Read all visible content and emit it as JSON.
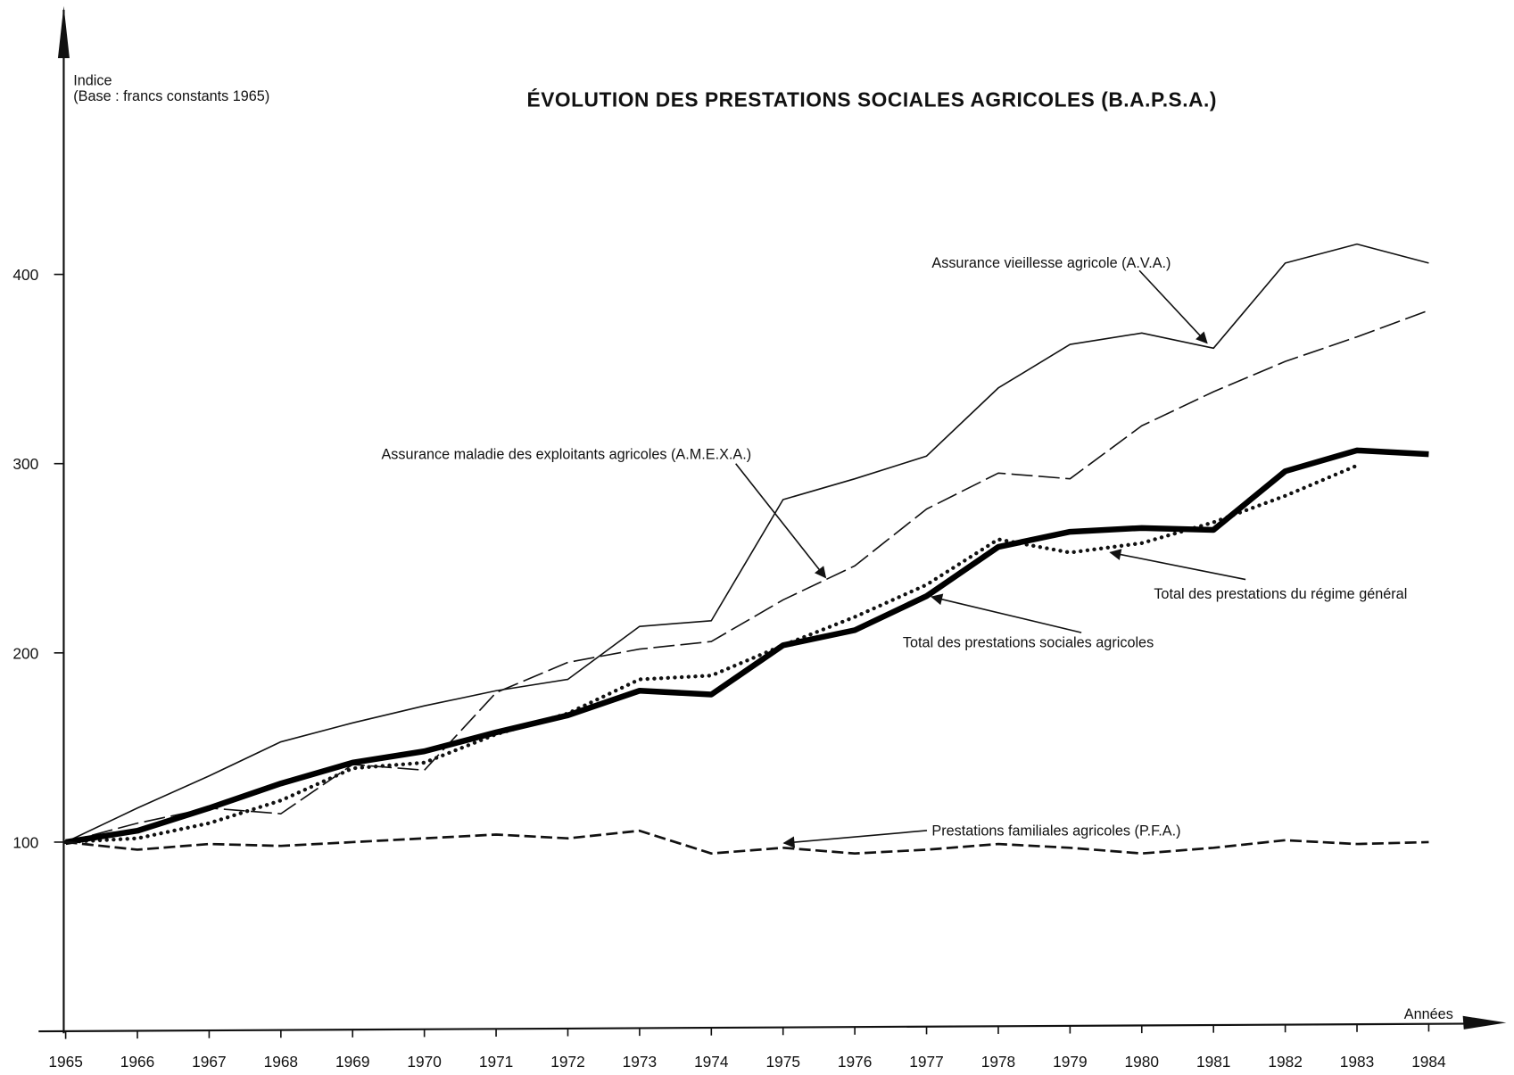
{
  "chart_data": {
    "type": "line",
    "title": "ÉVOLUTION DES PRESTATIONS SOCIALES AGRICOLES (B.A.P.S.A.)",
    "y_label": [
      "Indice",
      "(Base : francs constants 1965)"
    ],
    "x_label": "Années",
    "x": [
      1965,
      1966,
      1967,
      1968,
      1969,
      1970,
      1971,
      1972,
      1973,
      1974,
      1975,
      1976,
      1977,
      1978,
      1979,
      1980,
      1981,
      1982,
      1983,
      1984
    ],
    "xlim": [
      1965,
      1985
    ],
    "xticks": [
      1965,
      1966,
      1967,
      1968,
      1969,
      1970,
      1971,
      1972,
      1973,
      1974,
      1975,
      1976,
      1977,
      1978,
      1979,
      1980,
      1981,
      1982,
      1983,
      1984
    ],
    "ylim": [
      0,
      540
    ],
    "yticks": [
      100,
      200,
      300,
      400
    ],
    "series": [
      {
        "name": "Assurance vieillesse agricole (A.V.A.)",
        "color": "#111",
        "line_style": "thin",
        "values": [
          100,
          118,
          135,
          153,
          163,
          172,
          180,
          186,
          214,
          217,
          281,
          292,
          304,
          340,
          363,
          369,
          361,
          406,
          416,
          406
        ]
      },
      {
        "name": "Assurance maladie des exploitants agricoles (A.M.E.X.A.)",
        "color": "#111",
        "line_style": "long-dash",
        "values": [
          100,
          110,
          118,
          115,
          141,
          138,
          179,
          195,
          202,
          206,
          228,
          246,
          276,
          295,
          292,
          320,
          338,
          354,
          367,
          381
        ]
      },
      {
        "name": "Total des prestations du régime général",
        "color": "#111",
        "line_style": "dotted",
        "values": [
          100,
          102,
          110,
          122,
          139,
          142,
          157,
          168,
          186,
          188,
          204,
          219,
          236,
          260,
          253,
          258,
          269,
          283,
          299,
          null
        ]
      },
      {
        "name": "Total des prestations sociales agricoles",
        "color": "#000",
        "line_style": "thick",
        "values": [
          100,
          106,
          118,
          131,
          142,
          148,
          158,
          167,
          180,
          178,
          204,
          212,
          230,
          256,
          264,
          266,
          265,
          296,
          307,
          305
        ]
      },
      {
        "name": "Prestations familiales agricoles (P.F.A.)",
        "color": "#111",
        "line_style": "dashed",
        "values": [
          100,
          96,
          99,
          98,
          100,
          102,
          104,
          102,
          106,
          94,
          97,
          94,
          96,
          99,
          97,
          94,
          97,
          101,
          99,
          100
        ]
      }
    ]
  }
}
